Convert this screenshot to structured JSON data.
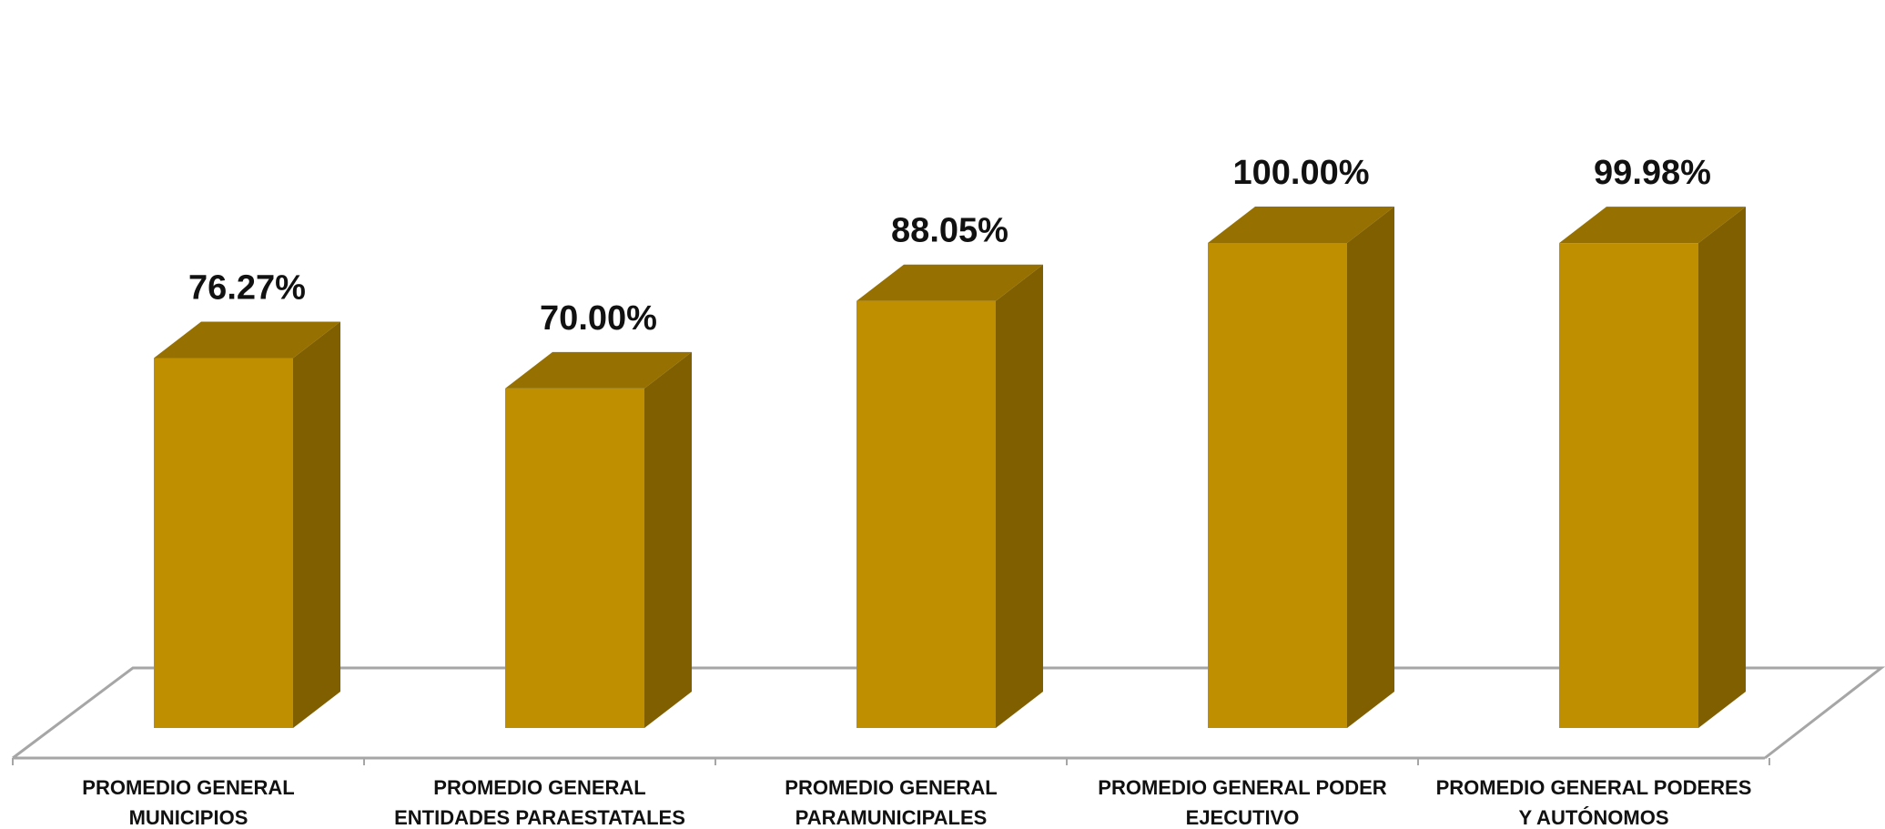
{
  "chart_data": {
    "type": "bar",
    "title": "",
    "xlabel": "",
    "ylabel": "",
    "ylim": [
      0,
      100
    ],
    "grid": false,
    "legend": "none",
    "style": "3d-column",
    "categories": [
      [
        "PROMEDIO GENERAL",
        "MUNICIPIOS"
      ],
      [
        "PROMEDIO GENERAL",
        "ENTIDADES PARAESTATALES"
      ],
      [
        "PROMEDIO GENERAL",
        "PARAMUNICIPALES"
      ],
      [
        "PROMEDIO GENERAL PODER",
        "EJECUTIVO"
      ],
      [
        "PROMEDIO GENERAL PODERES",
        "Y AUTÓNOMOS"
      ]
    ],
    "values": [
      76.27,
      70.0,
      88.05,
      100.0,
      99.98
    ],
    "value_labels": [
      "76.27%",
      "70.00%",
      "88.05%",
      "100.00%",
      "99.98%"
    ],
    "colors": {
      "front": "#BF8F00",
      "side": "#7F5F00",
      "top": "#967000",
      "floor_line": "#A6A6A6"
    }
  }
}
